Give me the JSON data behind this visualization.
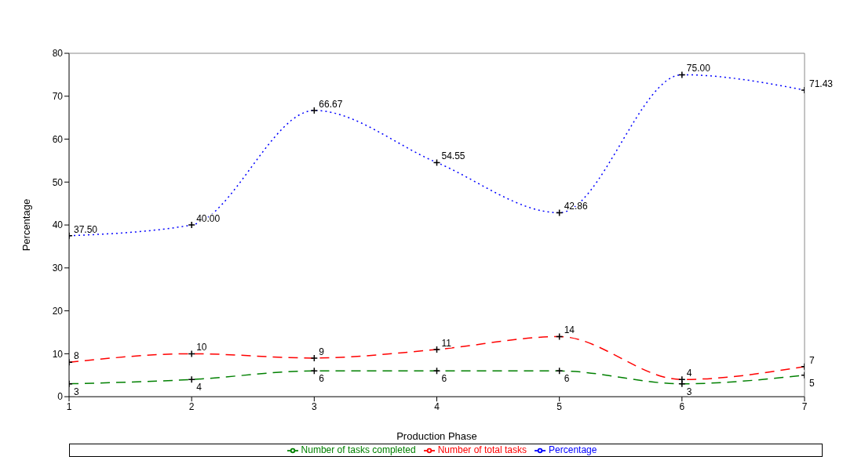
{
  "chart_data": {
    "type": "line",
    "xlabel": "Production Phase",
    "ylabel": "Percentage",
    "x": [
      1,
      2,
      3,
      4,
      5,
      6,
      7
    ],
    "xlim": [
      1,
      7
    ],
    "xticks": [
      1,
      2,
      3,
      4,
      5,
      6,
      7
    ],
    "ylim": [
      0,
      80
    ],
    "yticks": [
      0,
      10,
      20,
      30,
      40,
      50,
      60,
      70,
      80
    ],
    "series": [
      {
        "name": "Number of total tasks",
        "color": "#ff0000",
        "line_style": "dashed",
        "values": [
          8,
          10,
          9,
          11,
          14,
          4,
          7
        ]
      },
      {
        "name": "Number of tasks completed",
        "color": "#008000",
        "line_style": "dashed",
        "values": [
          3,
          4,
          6,
          6,
          6,
          3,
          5
        ]
      },
      {
        "name": "Percentage",
        "color": "#0000ff",
        "line_style": "dotted",
        "values": [
          37.5,
          40.0,
          66.67,
          54.55,
          42.86,
          75.0,
          71.43
        ],
        "value_labels": [
          "37.50",
          "40.00",
          "66.67",
          "54.55",
          "42.86",
          "75.00",
          "71.43"
        ]
      }
    ],
    "data_labels": true,
    "marker": "cross",
    "grid": false,
    "legend": "bottom"
  }
}
